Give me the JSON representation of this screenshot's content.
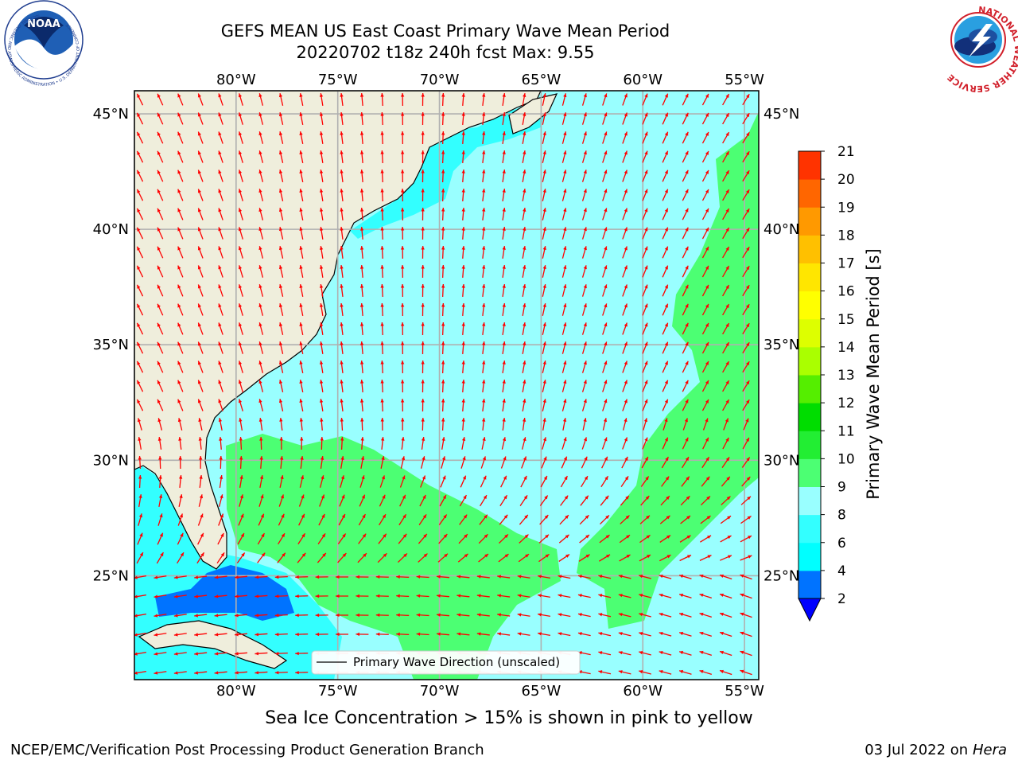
{
  "header": {
    "title_line1": "GEFS MEAN US East Coast Primary Wave Mean Period",
    "title_line2": "20220702 t18z 240h fcst   Max: 9.55"
  },
  "logos": {
    "left": {
      "name": "noaa-logo",
      "text": "NOAA",
      "ring_text": "NATIONAL OCEANIC AND ATMOSPHERIC ADMINISTRATION • U.S. DEPARTMENT OF COMMERCE"
    },
    "right": {
      "name": "nws-logo",
      "ring_text": "NATIONAL WEATHER SERVICE"
    }
  },
  "map": {
    "lon_labels": [
      "80°W",
      "75°W",
      "70°W",
      "65°W",
      "60°W",
      "55°W"
    ],
    "lat_labels": [
      "45°N",
      "40°N",
      "35°N",
      "30°N",
      "25°N"
    ],
    "lon_values": [
      -80,
      -75,
      -70,
      -65,
      -60,
      -55
    ],
    "lat_values": [
      45,
      40,
      35,
      30,
      25
    ],
    "extent": {
      "lon": [
        -85,
        -54.3
      ],
      "lat": [
        20.5,
        46
      ]
    },
    "legend_label": "Primary Wave Direction (unscaled)",
    "arrow_color": "#ff0000",
    "land_color": "#efeedc"
  },
  "colorbar": {
    "label": "Primary Wave Mean Period [s]",
    "ticks": [
      "2",
      "4",
      "6",
      "8",
      "9",
      "10",
      "11",
      "12",
      "13",
      "14",
      "15",
      "16",
      "17",
      "18",
      "19",
      "20",
      "21"
    ],
    "colors": [
      "#0000ff",
      "#0073ff",
      "#00ffff",
      "#33ffff",
      "#99ffff",
      "#4cff73",
      "#22ee33",
      "#00dd00",
      "#55ee00",
      "#aaff00",
      "#ddff00",
      "#ffff00",
      "#ffe600",
      "#ffc000",
      "#ff9900",
      "#ff6600",
      "#ff3300",
      "#ff0000"
    ]
  },
  "footer": {
    "subtitle": "Sea Ice Concentration > 15% is shown in pink to yellow",
    "left": "NCEP/EMC/Verification Post Processing Product Generation Branch",
    "right_date": "03 Jul 2022 on",
    "right_host": "Hera"
  }
}
